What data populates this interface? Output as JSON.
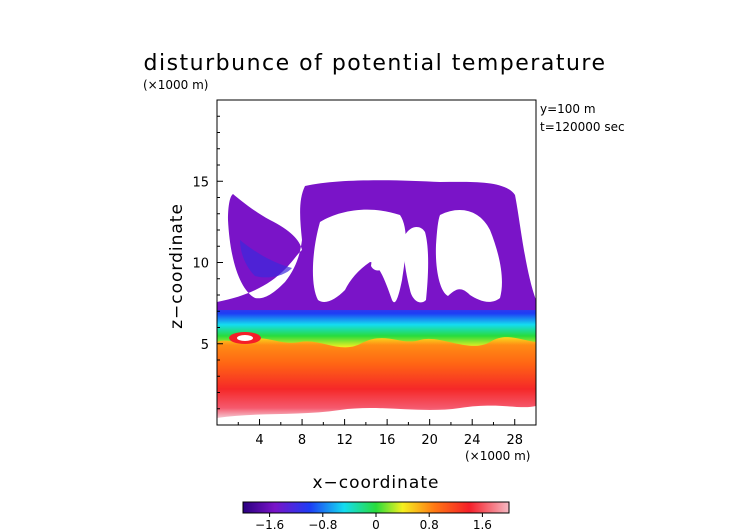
{
  "chart_data": {
    "type": "heatmap",
    "title": "disturbunce of potential temperature",
    "xlabel": "x−coordinate",
    "ylabel": "z−coordinate",
    "x_unit_label": "(×1000 m)",
    "y_unit_label": "(×1000 m)",
    "annotations": [
      "y=100 m",
      "t=120000 sec"
    ],
    "xlim": [
      0,
      30
    ],
    "ylim": [
      0,
      20
    ],
    "x_ticks": [
      4,
      8,
      12,
      16,
      20,
      24,
      28
    ],
    "y_ticks": [
      5,
      10,
      15
    ],
    "colorbar": {
      "range": [
        -2.0,
        2.0
      ],
      "ticks": [
        -1.6,
        -0.8,
        0,
        0.8,
        1.6
      ],
      "tick_labels": [
        "−1.6",
        "−0.8",
        "0",
        "0.8",
        "1.6"
      ]
    },
    "field_summary": {
      "z_0_to_1": "near zero (white) near the ground",
      "z_1_to_5": "positive 1.0 to 2.0 (orange-red, lighter pink at base)",
      "z_5_to_7": "transition from about +0.4 through 0 to about -1.2 (yellow-green-cyan-blue)",
      "z_7_to_16": "about -1.8 (purple) with white near-zero pockets",
      "z_above_16": "near zero (white)"
    },
    "colors": {
      "purple": "#7a14c8",
      "blue": "#1e3cf5",
      "cyan": "#14dcf0",
      "green": "#28dc3c",
      "yellow": "#f5f020",
      "orange": "#ff7814",
      "red": "#f51e28",
      "pink": "#f5b9c3"
    }
  }
}
